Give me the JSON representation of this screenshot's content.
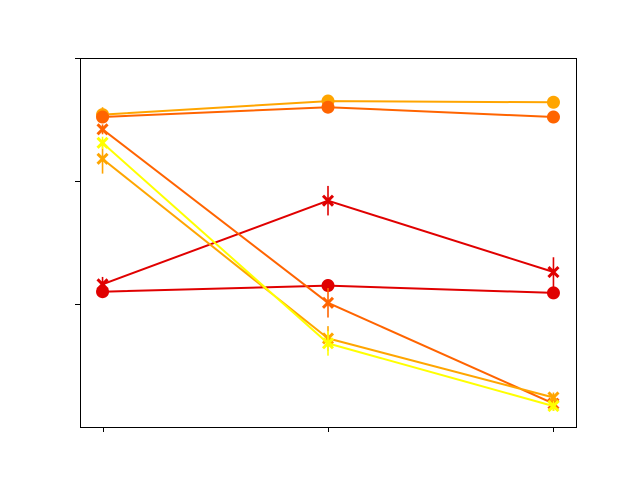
{
  "chart_data": {
    "type": "line",
    "x": [
      0,
      1,
      2
    ],
    "xlim": [
      -0.1,
      2.1
    ],
    "ylim": [
      0,
      3
    ],
    "grid": false,
    "x_ticks": [
      0,
      1,
      2
    ],
    "y_ticks": [
      1,
      2,
      3
    ],
    "tick_labels_visible": false,
    "series": [
      {
        "marker": "circle",
        "color": "#ffa500",
        "values": [
          2.54,
          2.65,
          2.64
        ],
        "err": [
          0.06,
          0.05,
          0.05
        ]
      },
      {
        "marker": "circle",
        "color": "#ff6400",
        "values": [
          2.52,
          2.6,
          2.52
        ],
        "err": [
          0.04,
          0.04,
          0.05
        ]
      },
      {
        "marker": "circle",
        "color": "#e00000",
        "values": [
          1.1,
          1.15,
          1.09
        ],
        "err": [
          0.04,
          0.05,
          0.04
        ]
      },
      {
        "marker": "x",
        "color": "#e00000",
        "values": [
          1.16,
          1.84,
          1.26
        ],
        "err": [
          0.06,
          0.12,
          0.12
        ]
      },
      {
        "marker": "x",
        "color": "#ff6400",
        "values": [
          2.42,
          1.01,
          0.19
        ],
        "err": [
          0.04,
          0.12,
          0.06
        ]
      },
      {
        "marker": "x",
        "color": "#ffa500",
        "values": [
          2.18,
          0.72,
          0.24
        ],
        "err": [
          0.12,
          0.1,
          0.04
        ]
      },
      {
        "marker": "x",
        "color": "#ffff00",
        "values": [
          2.31,
          0.68,
          0.17
        ],
        "err": [
          0.05,
          0.1,
          0.04
        ]
      }
    ]
  }
}
